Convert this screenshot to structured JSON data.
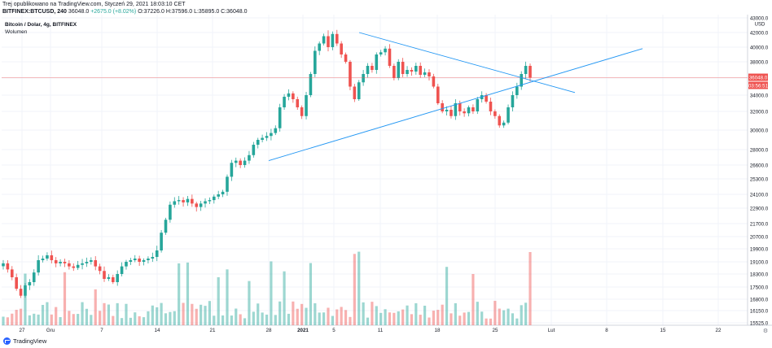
{
  "header": {
    "published": "Trej opublikowano na TradingView.com, Styczeń 29, 2021 18:03:10 CET",
    "symbol": "BITFINEX:BTCUSD, 240",
    "last": "36048.0",
    "change": "+2675.0 (+8.02%)",
    "ohlc": "O:37226.0 H:37596.0 L:35895.0 C:36048.0"
  },
  "legend": {
    "title": "Bitcoin / Dolar, 4g, BITFINEX",
    "volume": "Wolumen"
  },
  "brand": {
    "label": "TradingView",
    "icon": "tradingview-logo-icon"
  },
  "colors": {
    "up": "#26a69a",
    "down": "#ef5350",
    "trend": "#2196f3",
    "axis_tag": "#ef5350"
  },
  "chart_data": {
    "type": "candlestick",
    "y_unit": "USD",
    "y_ticks": [
      "43000.0",
      "42000.0",
      "40000.0",
      "38000.0",
      "36000.0",
      "34000.0",
      "32000.0",
      "30000.0",
      "28000.0",
      "26600.0",
      "25300.0",
      "24100.0",
      "22900.0",
      "21700.0",
      "20700.0",
      "19900.0",
      "19100.0",
      "18300.0",
      "17500.0",
      "16800.0",
      "16150.0",
      "15525.0"
    ],
    "x_ticks": [
      "27",
      "Gru",
      "7",
      "14",
      "21",
      "28",
      "2021",
      "5",
      "11",
      "18",
      "25",
      "Lut",
      "8",
      "15",
      "22"
    ],
    "last_price_label": "36048.0",
    "countdown_label": "03:56:51",
    "last_price": 36048.0,
    "series_close": [
      [
        19000,
        18600,
        18100,
        17400,
        17000,
        17600,
        17800,
        18400,
        19200,
        19300,
        19500,
        19200,
        19000,
        19100,
        19000,
        18800,
        18700,
        18900,
        19000,
        19100,
        19200,
        18800,
        18500,
        18000,
        18100,
        17800,
        18300,
        18800,
        19100,
        19200,
        19300,
        19100,
        19200,
        19300,
        19400
      ],
      [
        19800,
        21000,
        22000,
        23200,
        23500,
        23600,
        23400,
        23700,
        23300,
        23000,
        23300,
        23500,
        23600,
        23900,
        24100,
        24300,
        25500,
        26800,
        27000,
        26600,
        27000,
        27500,
        28500,
        29000,
        29200,
        29400,
        29700,
        30200
      ],
      [
        32500,
        33800,
        34200,
        33500,
        32500,
        31500,
        34000,
        36500,
        39500,
        40500,
        41500,
        40000,
        41800,
        40500,
        39000,
        38000,
        35000,
        33500,
        35500,
        36500,
        37500,
        37000,
        39000,
        39300,
        39800,
        37500,
        36000,
        38000,
        36500,
        37000,
        36800,
        37500,
        36400,
        36700,
        36200
      ],
      [
        35000,
        33000,
        32000,
        32200,
        31500,
        33000,
        32000,
        31800,
        32500,
        32000,
        33500,
        34000,
        33200,
        32000,
        31500,
        30500,
        30800,
        32500,
        34000,
        35000,
        36500,
        37500,
        36048
      ]
    ],
    "volume_scale_max": 100,
    "trendlines": [
      {
        "name": "descending-resistance",
        "from": [
          "2021-01-08",
          42000
        ],
        "to": [
          "2021-02-05",
          34300
        ]
      },
      {
        "name": "ascending-support",
        "from": [
          "2020-12-28",
          27000
        ],
        "to": [
          "2021-02-12",
          39800
        ]
      }
    ],
    "horizontal_line": 36048.0
  }
}
